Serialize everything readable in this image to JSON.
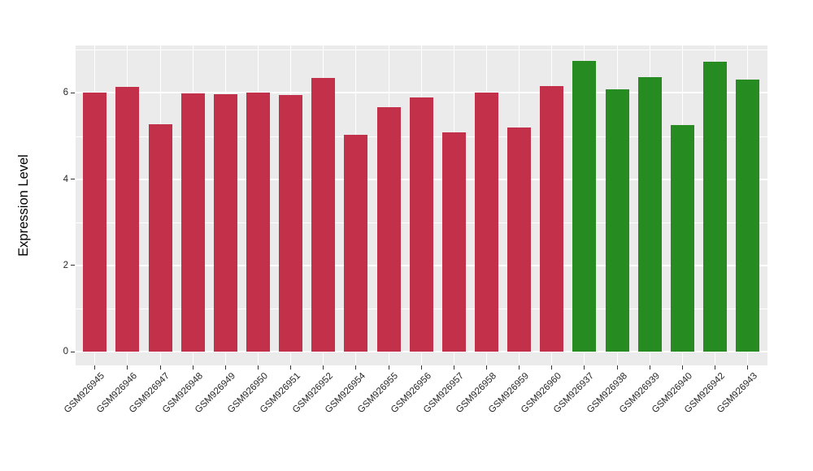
{
  "chart_data": {
    "type": "bar",
    "title": "",
    "xlabel": "",
    "ylabel": "Expression Level",
    "categories": [
      "GSM926945",
      "GSM926946",
      "GSM926947",
      "GSM926948",
      "GSM926949",
      "GSM926950",
      "GSM926951",
      "GSM926952",
      "GSM926954",
      "GSM926955",
      "GSM926956",
      "GSM926957",
      "GSM926958",
      "GSM926959",
      "GSM926960",
      "GSM926937",
      "GSM926938",
      "GSM926939",
      "GSM926940",
      "GSM926942",
      "GSM926943"
    ],
    "values": [
      6.0,
      6.14,
      5.27,
      5.99,
      5.97,
      6.01,
      5.95,
      6.35,
      5.03,
      5.66,
      5.9,
      5.09,
      6.01,
      5.2,
      6.15,
      6.74,
      6.09,
      6.36,
      5.25,
      6.72,
      6.3
    ],
    "bar_groups": [
      "red",
      "red",
      "red",
      "red",
      "red",
      "red",
      "red",
      "red",
      "red",
      "red",
      "red",
      "red",
      "red",
      "red",
      "red",
      "green",
      "green",
      "green",
      "green",
      "green",
      "green"
    ],
    "group_colors": {
      "red": "#C23149",
      "green": "#268C21"
    },
    "ytick_labels": [
      "0",
      "2",
      "4",
      "6"
    ],
    "ytick_values": [
      0,
      2,
      4,
      6
    ],
    "minor_grid_values": [
      1,
      3,
      5,
      7
    ],
    "ylim": [
      -0.32,
      7.1
    ],
    "grid": true,
    "legend_position": "none",
    "colors": {
      "panel_background": "#EBEBEB",
      "gridline": "#FFFFFF",
      "axis_text": "#262626",
      "axis_title": "#000000",
      "tick_mark": "#333333",
      "page_background": "#FFFFFF"
    }
  }
}
